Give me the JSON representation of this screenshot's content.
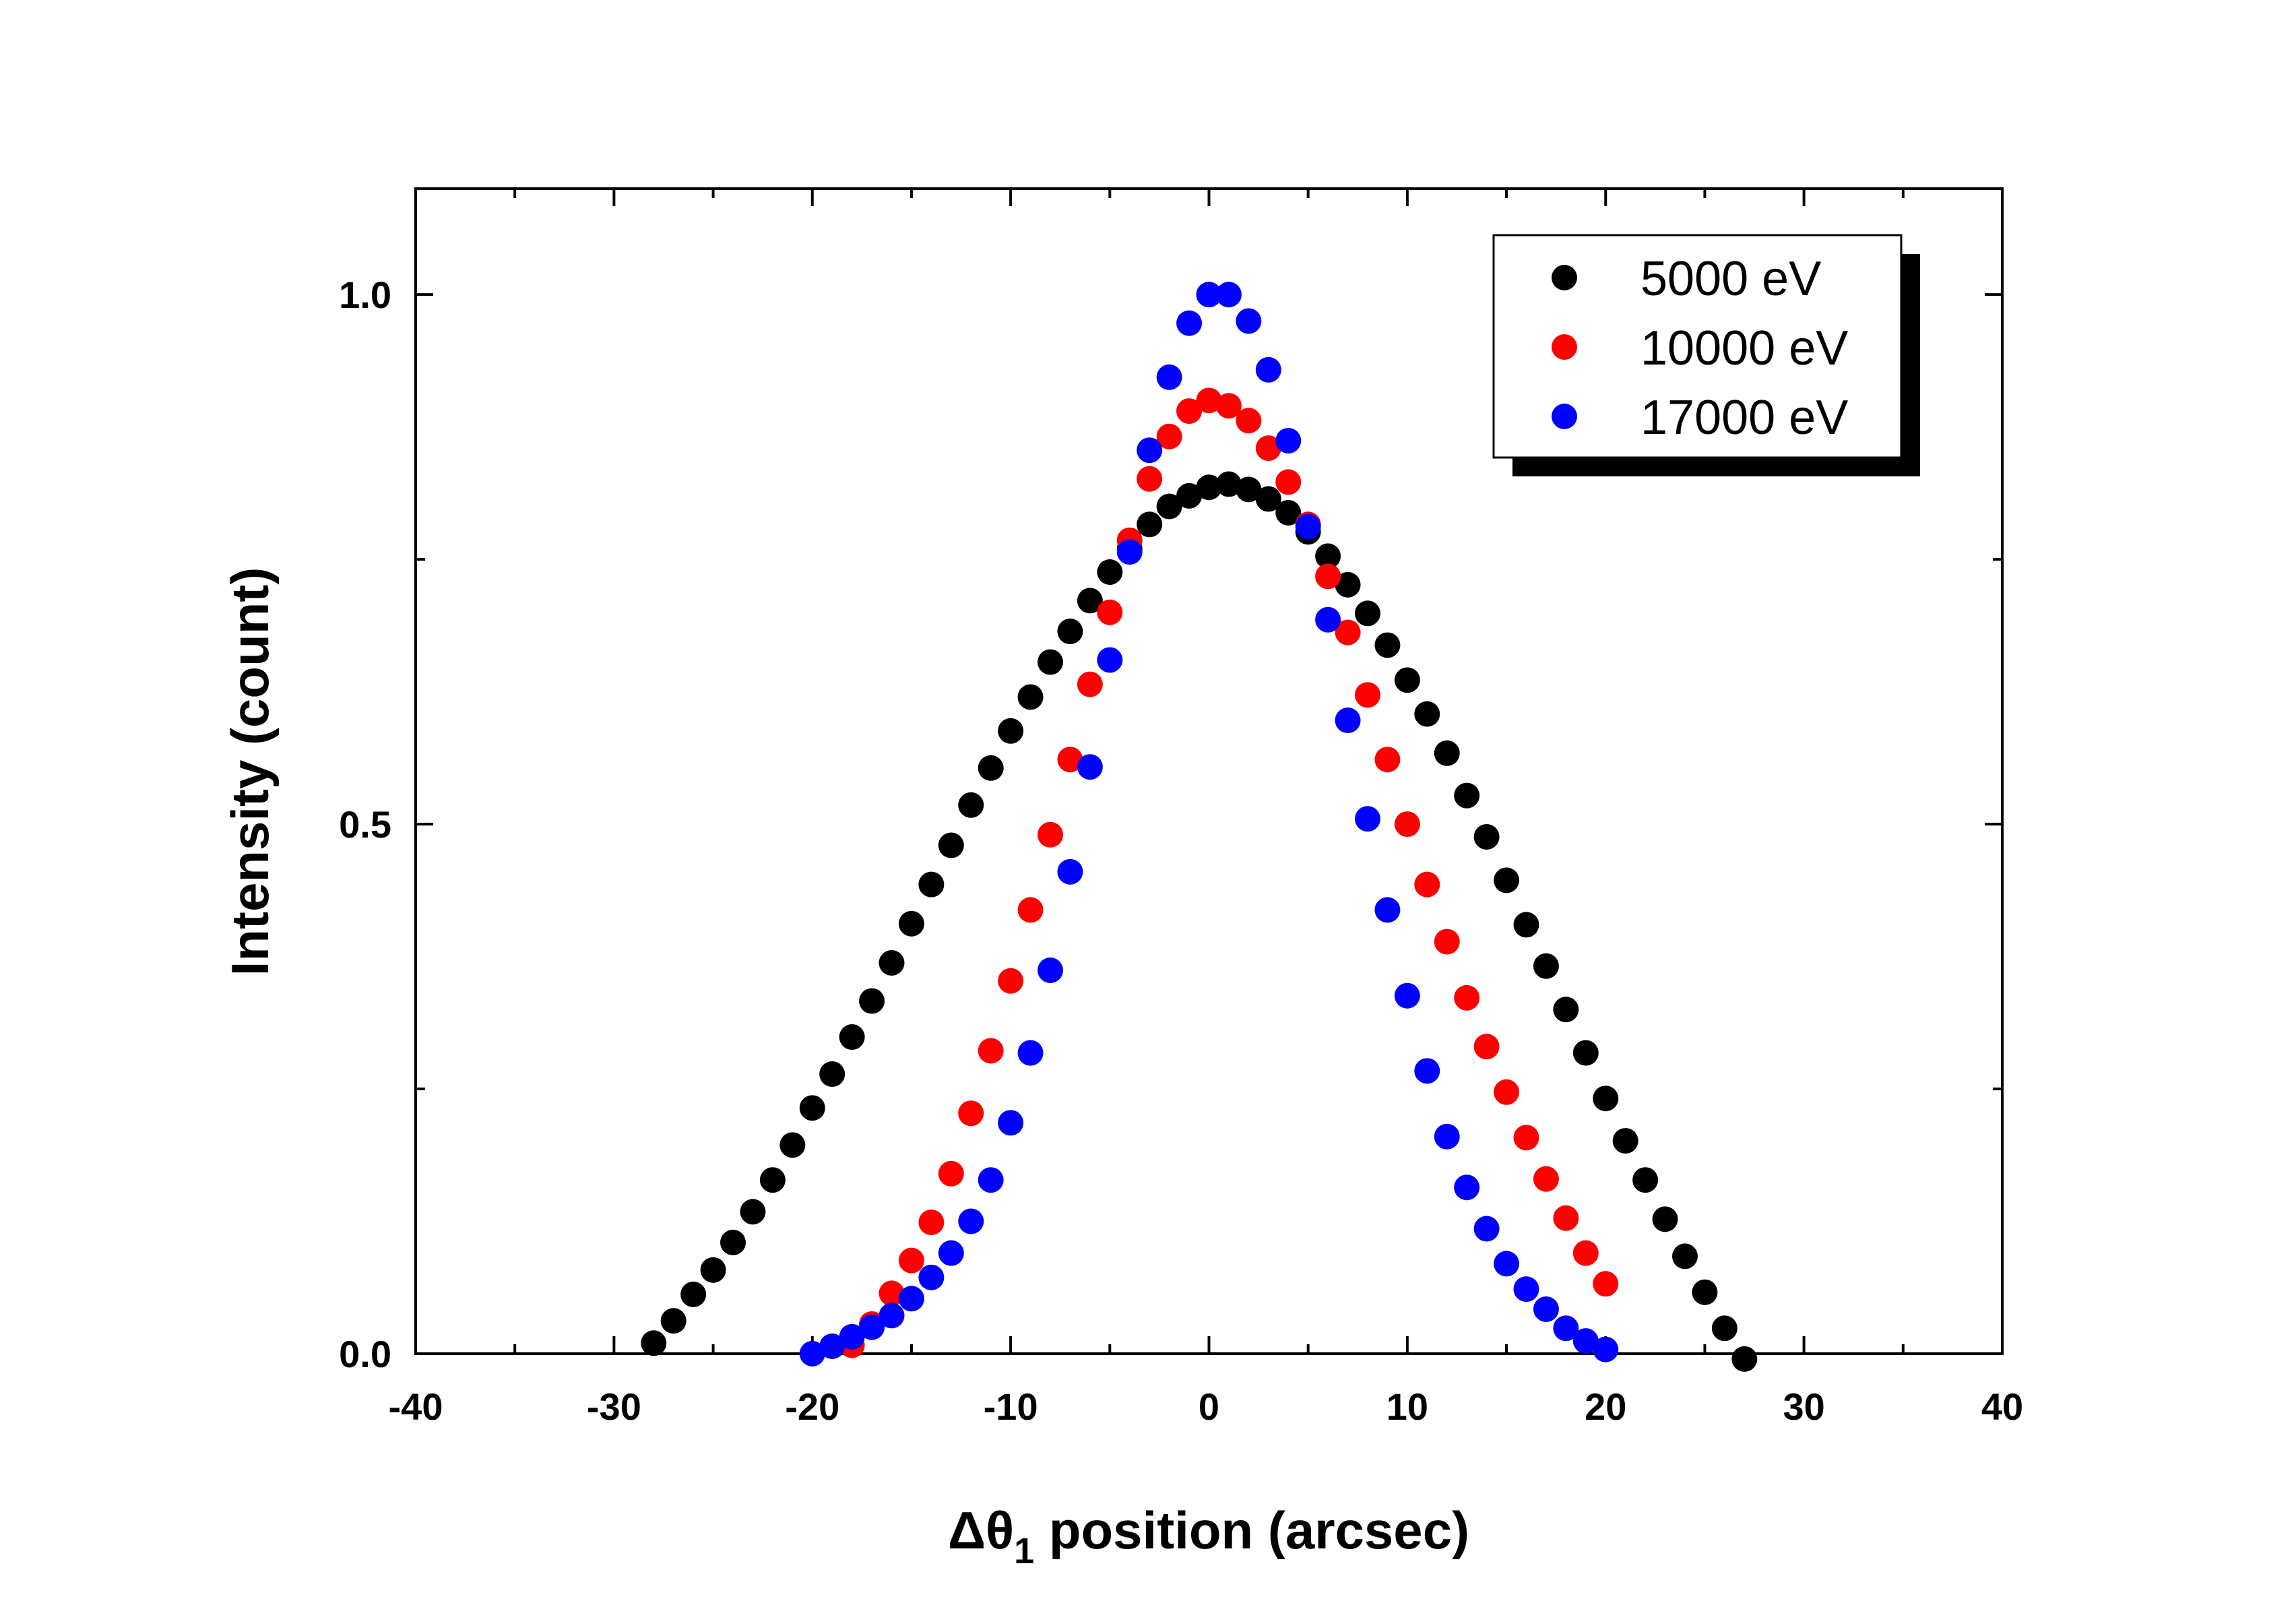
{
  "chart_data": {
    "type": "scatter",
    "xlabel": "Δθ1 position (arcsec)",
    "xlabel_parts": {
      "main": "Δθ",
      "sub": "1",
      "rest": " position (arcsec)"
    },
    "ylabel": "Intensity (count)",
    "xlim": [
      -40,
      40
    ],
    "ylim": [
      0,
      1.1
    ],
    "xticks": [
      -40,
      -30,
      -20,
      -10,
      0,
      10,
      20,
      30,
      40
    ],
    "xtick_labels": [
      "-40",
      "-30",
      "-20",
      "-10",
      "0",
      "10",
      "20",
      "30",
      "40"
    ],
    "yticks": [
      0,
      0.5,
      1.0
    ],
    "ytick_labels": [
      "0.0",
      "0.5",
      "1.0"
    ],
    "grid": false,
    "legend_position": "top-right",
    "series": [
      {
        "name": "5000 eV",
        "color": "#000000",
        "x": [
          -28,
          -27,
          -26,
          -25,
          -24,
          -23,
          -22,
          -21,
          -20,
          -19,
          -18,
          -17,
          -16,
          -15,
          -14,
          -13,
          -12,
          -11,
          -10,
          -9,
          -8,
          -7,
          -6,
          -5,
          -4,
          -3,
          -2,
          -1,
          0,
          1,
          2,
          3,
          4,
          5,
          6,
          7,
          8,
          9,
          10,
          11,
          12,
          13,
          14,
          15,
          16,
          17,
          18,
          19,
          20,
          21,
          22,
          23,
          24,
          25,
          26,
          27
        ],
        "y": [
          0.01,
          0.031,
          0.056,
          0.079,
          0.105,
          0.134,
          0.164,
          0.197,
          0.232,
          0.264,
          0.299,
          0.333,
          0.369,
          0.406,
          0.443,
          0.48,
          0.518,
          0.553,
          0.588,
          0.62,
          0.653,
          0.682,
          0.711,
          0.738,
          0.76,
          0.783,
          0.8,
          0.81,
          0.818,
          0.821,
          0.816,
          0.807,
          0.794,
          0.776,
          0.753,
          0.726,
          0.699,
          0.669,
          0.636,
          0.604,
          0.567,
          0.527,
          0.488,
          0.447,
          0.405,
          0.366,
          0.325,
          0.284,
          0.241,
          0.201,
          0.164,
          0.127,
          0.092,
          0.058,
          0.024,
          -0.005
        ]
      },
      {
        "name": "10000 eV",
        "color": "#ff0000",
        "x": [
          -18,
          -17,
          -16,
          -15,
          -14,
          -13,
          -12,
          -11,
          -10,
          -9,
          -8,
          -7,
          -6,
          -5,
          -4,
          -3,
          -2,
          -1,
          0,
          1,
          2,
          3,
          4,
          5,
          6,
          7,
          8,
          9,
          10,
          11,
          12,
          13,
          14,
          15,
          16,
          17,
          18,
          19,
          20
        ],
        "y": [
          0.008,
          0.028,
          0.057,
          0.088,
          0.124,
          0.17,
          0.227,
          0.286,
          0.352,
          0.419,
          0.49,
          0.561,
          0.632,
          0.7,
          0.768,
          0.826,
          0.866,
          0.89,
          0.9,
          0.895,
          0.881,
          0.855,
          0.823,
          0.783,
          0.734,
          0.681,
          0.622,
          0.561,
          0.5,
          0.443,
          0.389,
          0.336,
          0.29,
          0.247,
          0.204,
          0.165,
          0.128,
          0.095,
          0.066
        ]
      },
      {
        "name": "17000 eV",
        "color": "#0000ff",
        "x": [
          -20,
          -19,
          -18,
          -17,
          -16,
          -15,
          -14,
          -13,
          -12,
          -11,
          -10,
          -9,
          -8,
          -7,
          -6,
          -5,
          -4,
          -3,
          -2,
          -1,
          0,
          1,
          2,
          3,
          4,
          5,
          6,
          7,
          8,
          9,
          10,
          11,
          12,
          13,
          14,
          15,
          16,
          17,
          18,
          19,
          20
        ],
        "y": [
          0.0,
          0.007,
          0.016,
          0.025,
          0.036,
          0.052,
          0.072,
          0.095,
          0.125,
          0.164,
          0.218,
          0.284,
          0.362,
          0.455,
          0.554,
          0.655,
          0.757,
          0.853,
          0.922,
          0.973,
          1.0,
          1.0,
          0.975,
          0.929,
          0.862,
          0.781,
          0.693,
          0.598,
          0.505,
          0.419,
          0.338,
          0.267,
          0.205,
          0.157,
          0.118,
          0.085,
          0.061,
          0.042,
          0.024,
          0.012,
          0.004
        ]
      }
    ]
  }
}
